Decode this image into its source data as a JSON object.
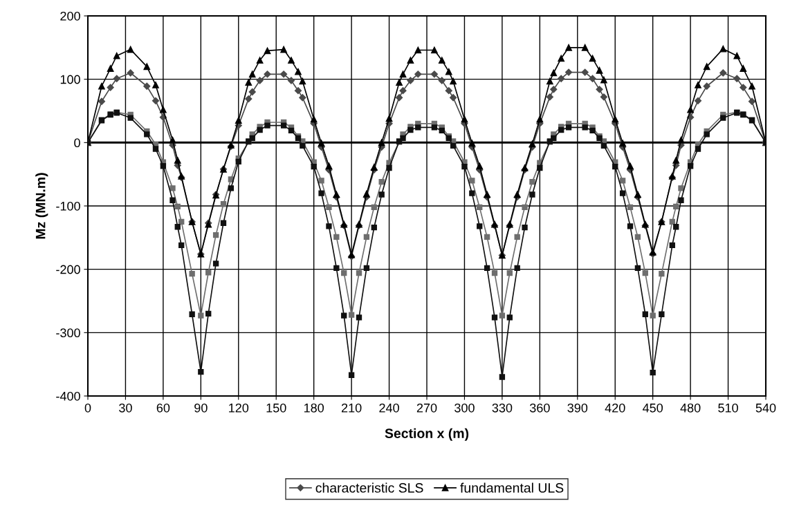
{
  "chart_data": {
    "type": "line",
    "xlabel": "Section x (m)",
    "ylabel": "Mz (MN.m)",
    "x": [
      0,
      11,
      18,
      23,
      34,
      47,
      54,
      60,
      67.5,
      71.5,
      74.5,
      83,
      90,
      96,
      102,
      108,
      114,
      120,
      128,
      131,
      137,
      143,
      156,
      162,
      167.5,
      171,
      180,
      186,
      192,
      198,
      204,
      210,
      216,
      222,
      228,
      234,
      240,
      248,
      251,
      257,
      263,
      276,
      282,
      287.5,
      291,
      300,
      306,
      312,
      318,
      324,
      330,
      336,
      342,
      348,
      354,
      360,
      368,
      371,
      377,
      383,
      396,
      402,
      407.5,
      411,
      420,
      426,
      432,
      438,
      444,
      450,
      457,
      465.5,
      468.5,
      472.5,
      480,
      486,
      493,
      506,
      517,
      522,
      529,
      540
    ],
    "series": [
      {
        "name": "characteristic SLS",
        "color": "#4a4a4a",
        "marker": "diamond",
        "values": [
          0,
          65,
          87,
          101,
          110,
          89,
          66,
          40,
          -4,
          -36,
          -55,
          -125,
          -176,
          -127,
          -82,
          -42,
          -6,
          27,
          69,
          80,
          98,
          108,
          108,
          98,
          82,
          71,
          30,
          -7,
          -43,
          -86,
          -131,
          -180,
          -131,
          -86,
          -43,
          -7,
          30,
          71,
          82,
          98,
          108,
          108,
          98,
          82,
          71,
          30,
          -7,
          -43,
          -86,
          -131,
          -178,
          -131,
          -86,
          -43,
          -7,
          30,
          72,
          84,
          101,
          111,
          111,
          101,
          84,
          72,
          30,
          -7,
          -43,
          -86,
          -131,
          -176,
          -125,
          -55,
          -36,
          -4,
          40,
          66,
          89,
          110,
          101,
          87,
          65,
          0
        ]
      },
      {
        "name": "fundamental ULS",
        "color": "#000000",
        "marker": "triangle",
        "values": [
          0,
          89,
          117,
          137,
          147,
          120,
          91,
          52,
          4,
          -28,
          -53,
          -125,
          -176,
          -129,
          -83,
          -42,
          -4,
          35,
          95,
          108,
          130,
          145,
          147,
          130,
          112,
          97,
          37,
          -1,
          -37,
          -82,
          -129,
          -177,
          -129,
          -81,
          -39,
          0,
          38,
          95,
          108,
          130,
          146,
          146,
          130,
          112,
          97,
          37,
          -1,
          -37,
          -82,
          -129,
          -178,
          -129,
          -82,
          -40,
          -2,
          37,
          97,
          110,
          133,
          150,
          150,
          133,
          114,
          99,
          37,
          -1,
          -37,
          -82,
          -129,
          -173,
          -125,
          -53,
          -28,
          4,
          52,
          91,
          120,
          148,
          137,
          117,
          89,
          0
        ]
      },
      {
        "color": "#6e6e6e",
        "marker": "square",
        "values": [
          0,
          36,
          45,
          48,
          44,
          18,
          -3,
          -31,
          -72,
          -101,
          -125,
          -207,
          -273,
          -205,
          -146,
          -97,
          -58,
          -25,
          1,
          13,
          25,
          32,
          32,
          24,
          10,
          2,
          -31,
          -60,
          -102,
          -149,
          -206,
          -272,
          -206,
          -149,
          -102,
          -62,
          -32,
          1,
          13,
          25,
          30,
          30,
          24,
          10,
          2,
          -31,
          -60,
          -102,
          -149,
          -206,
          -273,
          -206,
          -149,
          -102,
          -62,
          -32,
          1,
          13,
          25,
          30,
          30,
          24,
          10,
          2,
          -31,
          -60,
          -102,
          -149,
          -206,
          -273,
          -207,
          -125,
          -101,
          -72,
          -31,
          -3,
          18,
          44,
          48,
          45,
          36,
          0
        ]
      },
      {
        "color": "#111111",
        "marker": "square",
        "values": [
          0,
          35,
          44,
          47,
          39,
          13,
          -10,
          -37,
          -91,
          -133,
          -162,
          -271,
          -362,
          -270,
          -191,
          -127,
          -72,
          -30,
          2,
          7,
          20,
          27,
          27,
          19,
          7,
          -5,
          -38,
          -80,
          -132,
          -198,
          -273,
          -367,
          -276,
          -198,
          -134,
          -82,
          -40,
          2,
          7,
          20,
          24,
          24,
          19,
          7,
          -5,
          -38,
          -80,
          -132,
          -198,
          -276,
          -370,
          -276,
          -198,
          -134,
          -82,
          -40,
          2,
          7,
          20,
          24,
          24,
          19,
          7,
          -5,
          -38,
          -80,
          -132,
          -198,
          -271,
          -363,
          -271,
          -162,
          -133,
          -91,
          -37,
          -10,
          13,
          39,
          47,
          44,
          35,
          0
        ]
      }
    ],
    "xlim": [
      0,
      540
    ],
    "xticks": [
      0,
      30,
      60,
      90,
      120,
      150,
      180,
      210,
      240,
      270,
      300,
      330,
      360,
      390,
      420,
      450,
      480,
      510,
      540
    ],
    "ylim": [
      -400,
      200
    ],
    "yticks": [
      -400,
      -300,
      -200,
      -100,
      0,
      100,
      200
    ],
    "ref_lines": [
      {
        "axis": "y",
        "value": 0,
        "color": "#000000"
      }
    ],
    "grid": true,
    "legend": "bottom",
    "line_style": "solid"
  }
}
